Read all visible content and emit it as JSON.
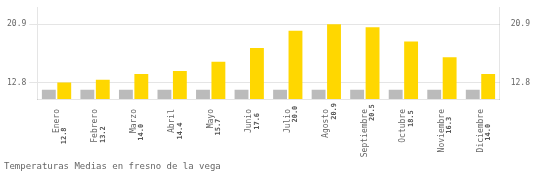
{
  "chart_data": {
    "type": "bar",
    "title": "Temperaturas Medias en fresno de la vega",
    "categories": [
      "Enero",
      "Febrero",
      "Marzo",
      "Abril",
      "Mayo",
      "Junio",
      "Julio",
      "Agosto",
      "Septiembre",
      "Octubre",
      "Noviembre",
      "Diciembre"
    ],
    "series": [
      {
        "color": "#BBBBBB",
        "values": [
          11.8,
          11.8,
          11.8,
          11.8,
          11.8,
          11.8,
          11.8,
          11.8,
          11.8,
          11.8,
          11.8,
          11.8
        ]
      },
      {
        "color": "#FFD700",
        "values": [
          12.8,
          13.2,
          14.0,
          14.4,
          15.7,
          17.6,
          20.0,
          20.9,
          20.5,
          18.5,
          16.3,
          14.0
        ],
        "value_labels": [
          "12.8",
          "13.2",
          "14.0",
          "14.4",
          "15.7",
          "17.6",
          "20.0",
          "20.9",
          "20.5",
          "18.5",
          "16.3",
          "14.0"
        ],
        "data_labels": true
      }
    ],
    "ylim": [
      10.5,
      23.2
    ],
    "yticks": [
      12.8,
      20.9
    ],
    "y2lim": [
      10.5,
      23.2
    ],
    "y2ticks": [
      12.8,
      20.9
    ],
    "grid": true
  }
}
